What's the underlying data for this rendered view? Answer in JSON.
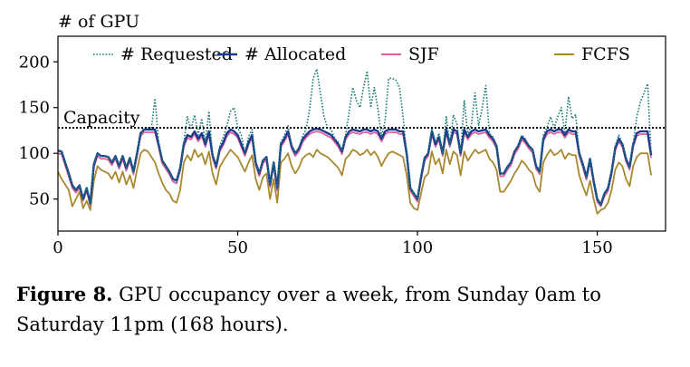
{
  "chart_data": {
    "type": "line",
    "ylabel": "# of GPU",
    "xlim": [
      0,
      169
    ],
    "ylim": [
      15,
      228
    ],
    "xticks": [
      0,
      50,
      100,
      150
    ],
    "yticks": [
      50,
      100,
      150,
      200
    ],
    "legend_position": "top",
    "grid": false,
    "capacity": {
      "label": "Capacity",
      "value": 128
    },
    "series": [
      {
        "name": "# Requested",
        "color": "#1a7a74",
        "style": "dotted",
        "values": [
          103,
          102,
          90,
          78,
          65,
          60,
          65,
          50,
          62,
          45,
          88,
          100,
          97,
          97,
          96,
          90,
          97,
          86,
          97,
          84,
          95,
          80,
          100,
          122,
          128,
          128,
          128,
          160,
          112,
          92,
          86,
          80,
          72,
          70,
          84,
          112,
          140,
          126,
          142,
          120,
          138,
          112,
          146,
          98,
          86,
          108,
          118,
          130,
          146,
          150,
          128,
          120,
          100,
          118,
          126,
          90,
          78,
          92,
          96,
          66,
          90,
          62,
          112,
          120,
          130,
          108,
          100,
          106,
          118,
          126,
          148,
          182,
          192,
          166,
          140,
          128,
          126,
          116,
          112,
          102,
          120,
          145,
          172,
          158,
          150,
          172,
          190,
          150,
          172,
          148,
          118,
          136,
          182,
          182,
          180,
          172,
          140,
          100,
          62,
          56,
          50,
          74,
          95,
          100,
          128,
          112,
          122,
          100,
          140,
          110,
          142,
          132,
          100,
          158,
          120,
          132,
          166,
          130,
          150,
          174,
          122,
          118,
          108,
          78,
          78,
          85,
          90,
          102,
          108,
          120,
          116,
          108,
          104,
          86,
          80,
          120,
          128,
          140,
          128,
          140,
          150,
          122,
          162,
          138,
          142,
          100,
          88,
          74,
          94,
          70,
          50,
          44,
          56,
          62,
          80,
          108,
          120,
          110,
          94,
          85,
          110,
          140,
          156,
          166,
          176,
          98
        ]
      },
      {
        "name": "# Allocated",
        "color": "#1a3a8f",
        "style": "solid",
        "values": [
          103,
          102,
          90,
          78,
          65,
          60,
          65,
          50,
          62,
          45,
          88,
          100,
          97,
          97,
          96,
          90,
          97,
          86,
          97,
          84,
          95,
          80,
          100,
          122,
          126,
          126,
          126,
          126,
          110,
          92,
          86,
          80,
          72,
          70,
          84,
          110,
          120,
          118,
          124,
          116,
          122,
          110,
          124,
          98,
          86,
          105,
          112,
          122,
          126,
          124,
          120,
          110,
          100,
          112,
          120,
          90,
          78,
          92,
          96,
          66,
          90,
          62,
          110,
          116,
          124,
          108,
          100,
          105,
          115,
          120,
          124,
          126,
          127,
          126,
          124,
          122,
          120,
          115,
          110,
          102,
          118,
          124,
          126,
          125,
          124,
          126,
          126,
          124,
          126,
          124,
          116,
          124,
          126,
          126,
          126,
          124,
          124,
          100,
          62,
          56,
          50,
          74,
          95,
          100,
          124,
          110,
          118,
          100,
          126,
          110,
          126,
          124,
          100,
          126,
          118,
          124,
          126,
          124,
          125,
          126,
          120,
          116,
          108,
          78,
          78,
          85,
          90,
          102,
          108,
          118,
          114,
          108,
          104,
          86,
          80,
          116,
          124,
          126,
          124,
          126,
          126,
          120,
          126,
          124,
          124,
          100,
          88,
          74,
          94,
          70,
          50,
          44,
          56,
          62,
          80,
          106,
          116,
          110,
          94,
          85,
          110,
          122,
          124,
          124,
          124,
          98
        ]
      },
      {
        "name": "SJF",
        "color": "#e0609a",
        "style": "solid",
        "values": [
          100,
          99,
          87,
          75,
          62,
          57,
          62,
          48,
          59,
          43,
          85,
          97,
          94,
          94,
          93,
          87,
          94,
          83,
          94,
          81,
          92,
          77,
          97,
          119,
          123,
          123,
          123,
          123,
          107,
          89,
          83,
          77,
          69,
          67,
          81,
          107,
          117,
          115,
          121,
          113,
          119,
          107,
          121,
          95,
          83,
          102,
          109,
          119,
          123,
          121,
          117,
          107,
          97,
          109,
          117,
          87,
          75,
          89,
          93,
          63,
          87,
          59,
          107,
          113,
          121,
          105,
          97,
          102,
          112,
          117,
          121,
          123,
          124,
          123,
          121,
          119,
          117,
          112,
          107,
          99,
          115,
          121,
          123,
          122,
          121,
          123,
          123,
          121,
          123,
          121,
          113,
          121,
          123,
          123,
          123,
          121,
          121,
          97,
          59,
          53,
          47,
          71,
          92,
          97,
          121,
          107,
          115,
          97,
          123,
          107,
          123,
          121,
          97,
          123,
          115,
          121,
          123,
          121,
          122,
          123,
          117,
          113,
          105,
          75,
          75,
          82,
          87,
          99,
          105,
          115,
          111,
          105,
          101,
          83,
          77,
          113,
          121,
          123,
          121,
          123,
          123,
          117,
          123,
          121,
          121,
          97,
          85,
          71,
          91,
          67,
          47,
          42,
          53,
          59,
          77,
          103,
          113,
          107,
          91,
          82,
          107,
          119,
          121,
          121,
          121,
          95
        ]
      },
      {
        "name": "FCFS",
        "color": "#a8892e",
        "style": "solid",
        "values": [
          80,
          72,
          66,
          60,
          42,
          50,
          58,
          40,
          48,
          38,
          70,
          86,
          82,
          80,
          78,
          72,
          80,
          68,
          80,
          66,
          76,
          62,
          82,
          100,
          104,
          102,
          96,
          90,
          78,
          68,
          60,
          56,
          48,
          46,
          60,
          90,
          98,
          92,
          104,
          96,
          100,
          88,
          102,
          78,
          66,
          85,
          92,
          98,
          104,
          100,
          96,
          88,
          80,
          90,
          98,
          72,
          60,
          74,
          78,
          50,
          72,
          46,
          90,
          94,
          100,
          86,
          78,
          84,
          94,
          98,
          100,
          96,
          104,
          100,
          98,
          96,
          92,
          88,
          84,
          76,
          94,
          98,
          104,
          102,
          98,
          100,
          104,
          98,
          102,
          96,
          86,
          94,
          100,
          102,
          100,
          98,
          96,
          76,
          46,
          40,
          38,
          56,
          74,
          78,
          102,
          88,
          94,
          78,
          104,
          88,
          102,
          98,
          76,
          102,
          92,
          98,
          104,
          100,
          102,
          104,
          94,
          90,
          82,
          58,
          58,
          64,
          70,
          78,
          84,
          92,
          88,
          82,
          78,
          64,
          58,
          90,
          98,
          104,
          98,
          100,
          104,
          94,
          100,
          98,
          98,
          76,
          64,
          54,
          70,
          50,
          34,
          38,
          40,
          46,
          60,
          82,
          90,
          86,
          72,
          64,
          86,
          96,
          100,
          100,
          100,
          76
        ]
      }
    ]
  },
  "caption": {
    "label": "Figure 8.",
    "text": " GPU occupancy over a week, from Sunday 0am to Saturday 11pm (168 hours)."
  }
}
